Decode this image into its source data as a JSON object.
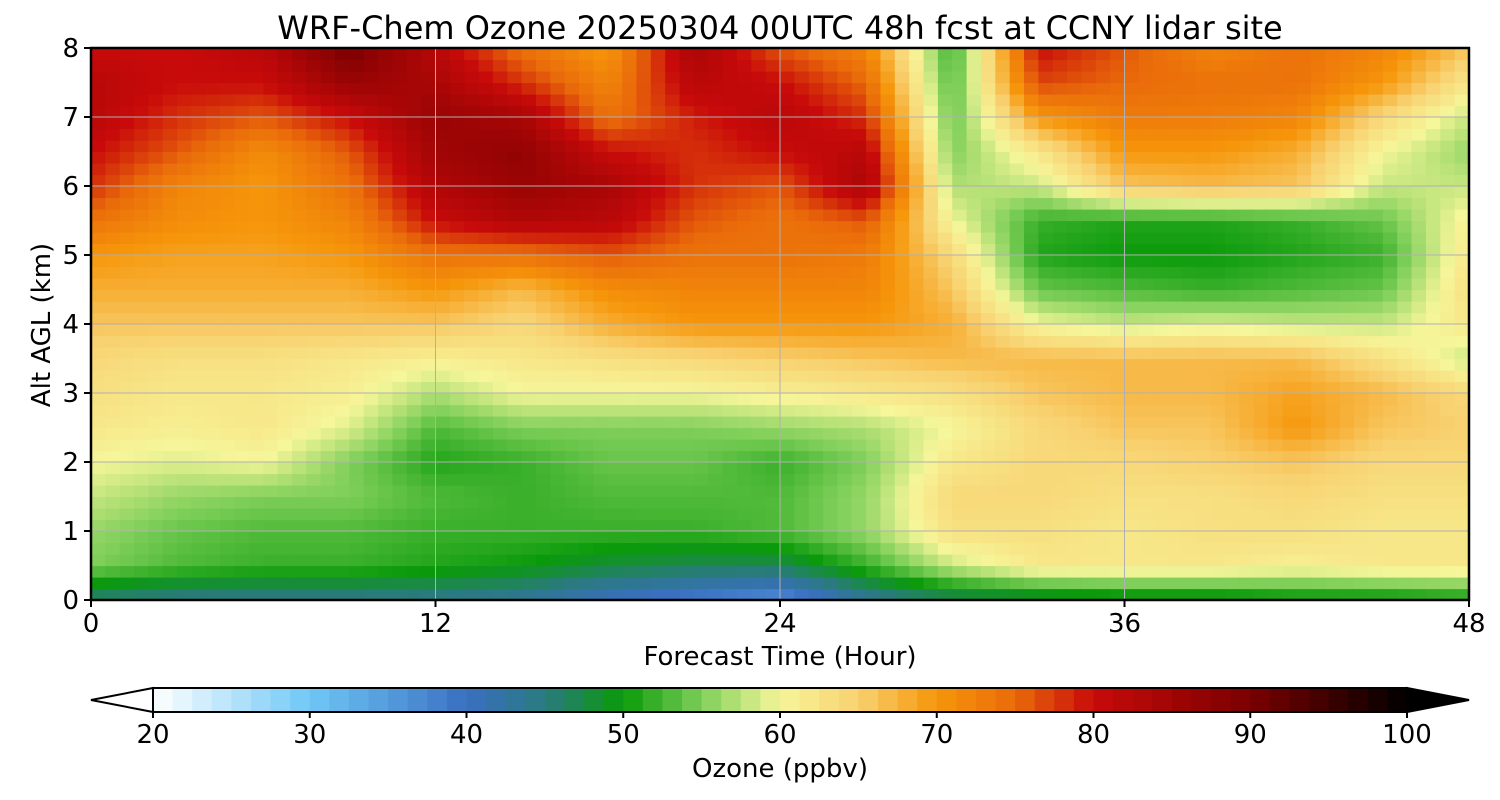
{
  "chart_data": {
    "type": "heatmap",
    "title": "WRF-Chem Ozone  20250304 00UTC 48h fcst at CCNY lidar site",
    "xlabel": "Forecast Time (Hour)",
    "ylabel": "Alt AGL (km)",
    "xlim": [
      0,
      48
    ],
    "ylim": [
      0,
      8
    ],
    "xticks": [
      0,
      12,
      24,
      36,
      48
    ],
    "yticks": [
      0,
      1,
      2,
      3,
      4,
      5,
      6,
      7,
      8
    ],
    "grid": true,
    "colorbar": {
      "label": "Ozone  (ppbv)",
      "range": [
        20,
        100
      ],
      "ticks": [
        20,
        30,
        40,
        50,
        60,
        70,
        80,
        90,
        100
      ],
      "extend": "both",
      "orientation": "horizontal",
      "colors": [
        {
          "v": 20,
          "c": "#ffffff"
        },
        {
          "v": 30,
          "c": "#6fc8f5"
        },
        {
          "v": 40,
          "c": "#3a6fc2"
        },
        {
          "v": 45,
          "c": "#2a7a80"
        },
        {
          "v": 50,
          "c": "#0a9a0a"
        },
        {
          "v": 55,
          "c": "#7fcf5a"
        },
        {
          "v": 60,
          "c": "#f6f69a"
        },
        {
          "v": 65,
          "c": "#f8d170"
        },
        {
          "v": 70,
          "c": "#f6960a"
        },
        {
          "v": 75,
          "c": "#e96a0a"
        },
        {
          "v": 80,
          "c": "#c80a0a"
        },
        {
          "v": 90,
          "c": "#7a0000"
        },
        {
          "v": 100,
          "c": "#000000"
        }
      ]
    },
    "x": [
      0,
      3,
      6,
      9,
      12,
      15,
      18,
      21,
      24,
      27,
      30,
      33,
      36,
      39,
      42,
      45,
      48
    ],
    "y": [
      0,
      0.5,
      1,
      1.5,
      2,
      2.5,
      3,
      3.5,
      4,
      4.5,
      5,
      5.5,
      6,
      6.5,
      7,
      7.5,
      8
    ],
    "z": [
      [
        45,
        44,
        44,
        44,
        44,
        43,
        40,
        38,
        36,
        43,
        46,
        47,
        48,
        48,
        49,
        49,
        50
      ],
      [
        55,
        53,
        52,
        52,
        51,
        50,
        48,
        47,
        47,
        52,
        58,
        62,
        62,
        62,
        61,
        62,
        62
      ],
      [
        56,
        54,
        53,
        53,
        52,
        52,
        52,
        52,
        53,
        56,
        63,
        63,
        62,
        63,
        63,
        62,
        62
      ],
      [
        58,
        56,
        55,
        55,
        53,
        52,
        53,
        53,
        53,
        56,
        64,
        64,
        63,
        63,
        64,
        63,
        63
      ],
      [
        60,
        59,
        60,
        55,
        51,
        52,
        54,
        54,
        52,
        55,
        62,
        64,
        64,
        65,
        66,
        64,
        64
      ],
      [
        62,
        61,
        62,
        59,
        53,
        55,
        55,
        55,
        56,
        57,
        60,
        64,
        66,
        66,
        70,
        66,
        65
      ],
      [
        63,
        62,
        62,
        61,
        57,
        60,
        60,
        60,
        61,
        62,
        63,
        66,
        67,
        67,
        69,
        67,
        64
      ],
      [
        64,
        63,
        63,
        62,
        61,
        62,
        63,
        64,
        65,
        66,
        67,
        67,
        67,
        67,
        67,
        63,
        58
      ],
      [
        66,
        66,
        66,
        66,
        66,
        64,
        68,
        70,
        70,
        70,
        68,
        60,
        58,
        59,
        58,
        58,
        62
      ],
      [
        68,
        68,
        68,
        68,
        70,
        67,
        71,
        72,
        72,
        72,
        66,
        54,
        53,
        52,
        53,
        54,
        63
      ],
      [
        70,
        69,
        69,
        70,
        74,
        74,
        76,
        74,
        74,
        73,
        64,
        51,
        50,
        50,
        51,
        52,
        62
      ],
      [
        74,
        71,
        70,
        72,
        80,
        83,
        82,
        76,
        74,
        76,
        60,
        52,
        51,
        51,
        52,
        54,
        61
      ],
      [
        78,
        72,
        70,
        74,
        83,
        86,
        84,
        78,
        76,
        84,
        57,
        58,
        66,
        67,
        66,
        58,
        58
      ],
      [
        80,
        76,
        71,
        76,
        85,
        87,
        80,
        78,
        80,
        82,
        55,
        62,
        70,
        70,
        68,
        60,
        56
      ],
      [
        82,
        78,
        76,
        80,
        86,
        84,
        74,
        79,
        82,
        78,
        54,
        70,
        73,
        73,
        72,
        64,
        58
      ],
      [
        82,
        80,
        80,
        86,
        84,
        78,
        72,
        82,
        80,
        75,
        53,
        77,
        75,
        74,
        74,
        70,
        62
      ],
      [
        80,
        80,
        82,
        90,
        82,
        74,
        70,
        84,
        76,
        72,
        52,
        80,
        76,
        72,
        74,
        72,
        66
      ]
    ]
  }
}
